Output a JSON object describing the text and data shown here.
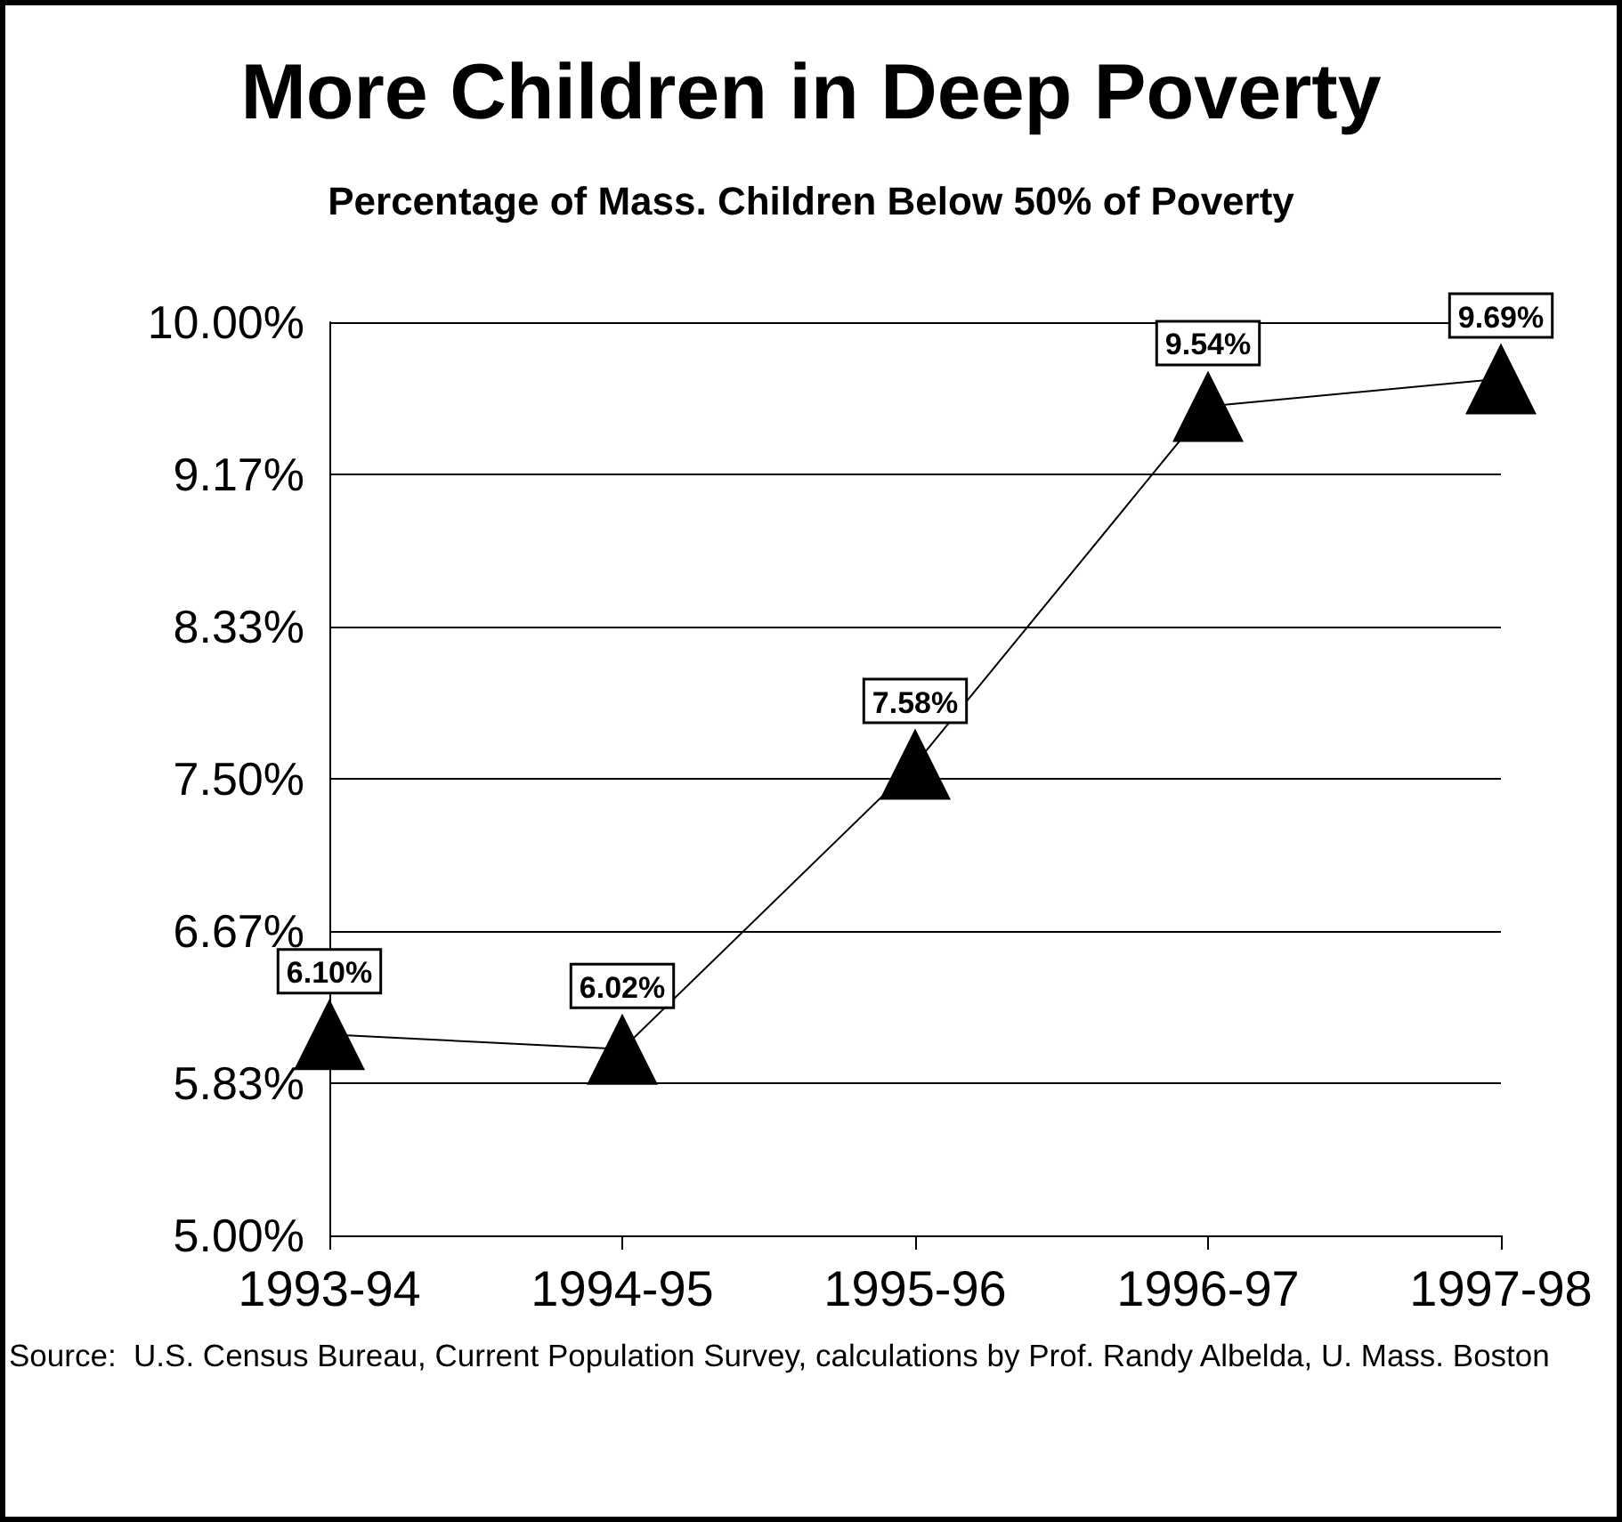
{
  "chart_data": {
    "type": "line",
    "title": "More Children in Deep Poverty",
    "subtitle": "Percentage of Mass. Children Below 50% of Poverty",
    "categories": [
      "1993-94",
      "1994-95",
      "1995-96",
      "1996-97",
      "1997-98"
    ],
    "values": [
      6.1,
      6.02,
      7.58,
      9.54,
      9.69
    ],
    "value_labels": [
      "6.10%",
      "6.02%",
      "7.58%",
      "9.54%",
      "9.69%"
    ],
    "color": "#000000",
    "marker": "triangle",
    "line_style": "solid",
    "grid": "y",
    "ylim": [
      5,
      10
    ],
    "yticks": [
      {
        "value": 5,
        "label": "5.00%"
      },
      {
        "value": 5.8333,
        "label": "5.83%"
      },
      {
        "value": 6.6667,
        "label": "6.67%"
      },
      {
        "value": 7.5,
        "label": "7.50%"
      },
      {
        "value": 8.3333,
        "label": "8.33%"
      },
      {
        "value": 9.1667,
        "label": "9.17%"
      },
      {
        "value": 10,
        "label": "10.00%"
      }
    ],
    "annotations": [
      "Source:  U.S. Census Bureau, Current Population Survey, calculations by Prof. Randy Albelda, U. Mass. Boston"
    ]
  }
}
